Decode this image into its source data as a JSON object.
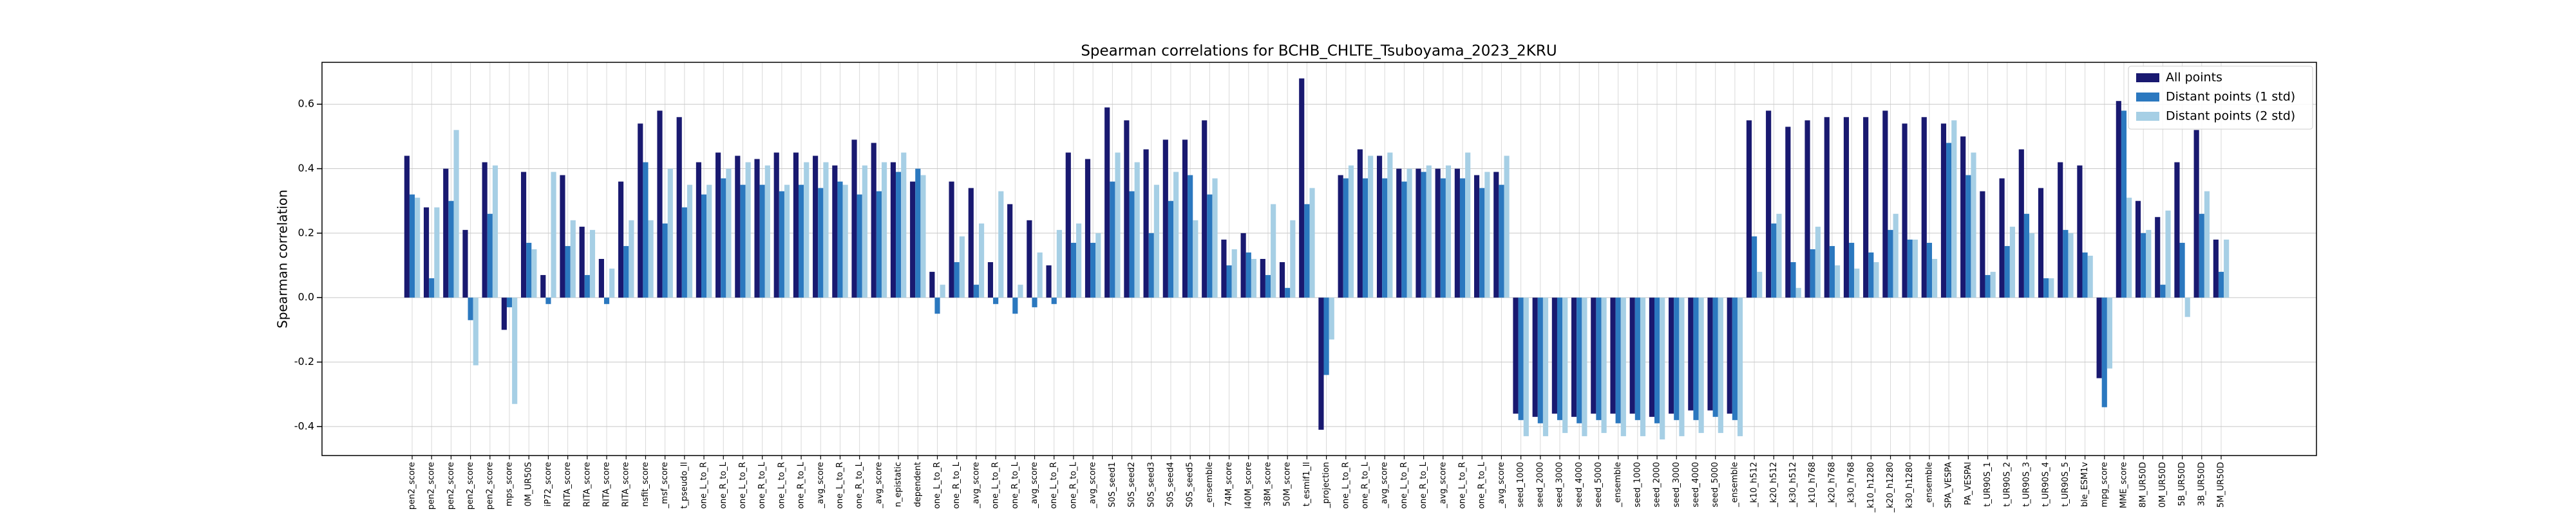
{
  "chart_data": {
    "type": "bar",
    "title": "Spearman correlations for BCHB_CHLTE_Tsuboyama_2023_2KRU",
    "y_label": "Spearman correlation",
    "categories": [
      "pen2_score",
      "pen2_score",
      "pen2_score",
      "pen2_score",
      "pen2_score",
      "mps_score",
      "0M_UR50S",
      "iP72_score",
      "RITA_score",
      "RITA_score",
      "RITA_score",
      "RITA_score",
      "nsfit_score",
      "_msf_score",
      "t_pseudo_ll",
      "one_L_to_R",
      "one_R_to_L",
      "one_L_to_R",
      "one_R_to_L",
      "one_L_to_R",
      "one_R_to_L",
      "_avg_score",
      "one_L_to_R",
      "one_R_to_L",
      "_avg_score",
      "n_epistatic",
      "dependent",
      "one_L_to_R",
      "one_R_to_L",
      "_avg_score",
      "one_L_to_R",
      "one_R_to_L",
      "_avg_score",
      "one_L_to_R",
      "one_R_to_L",
      "_avg_score",
      "S0S_seed1",
      "S0S_seed2",
      "S0S_seed3",
      "S0S_seed4",
      "S0S_seed5",
      "_ensemble",
      "74M_score",
      "l40M_score",
      "38M_score",
      "50M_score",
      "t_esmif1_ll",
      "_projection",
      "one_L_to_R",
      "one_R_to_L",
      "_avg_score",
      "one_L_to_R",
      "one_R_to_L",
      "_avg_score",
      "one_L_to_R",
      "one_R_to_L",
      "_avg_score",
      "seed_1000",
      "seed_2000",
      "seed_3000",
      "seed_4000",
      "seed_5000",
      "_ensemble",
      "seed_1000",
      "seed_2000",
      "seed_3000",
      "seed_4000",
      "seed_5000",
      "_ensemble",
      "_k10_h512",
      "_k20_h512",
      "_k30_h512",
      "_k10_h768",
      "_k20_h768",
      "_k30_h768",
      "_k10_h1280",
      "_k20_h1280",
      "k30_h1280",
      "_ensemble",
      "SPA_VESPA",
      "PA_VESPAl",
      "t_UR90S_1",
      "t_UR90S_2",
      "t_UR90S_3",
      "t_UR90S_4",
      "t_UR90S_5",
      "ble_ESM1v",
      "mpg_score",
      "MME_score",
      "8M_UR50D",
      "0M_UR50D",
      "5B_UR50D",
      "3B_UR50D",
      "5M_UR50D"
    ],
    "series": [
      {
        "name": "All points",
        "color": "#191970",
        "values": [
          0.44,
          0.28,
          0.4,
          0.21,
          0.42,
          -0.1,
          0.39,
          0.07,
          0.38,
          0.22,
          0.12,
          0.36,
          0.54,
          0.58,
          0.56,
          0.42,
          0.45,
          0.44,
          0.43,
          0.45,
          0.45,
          0.44,
          0.41,
          0.49,
          0.48,
          0.42,
          0.36,
          0.08,
          0.36,
          0.34,
          0.11,
          0.29,
          0.24,
          0.1,
          0.45,
          0.43,
          0.59,
          0.55,
          0.46,
          0.49,
          0.49,
          0.55,
          0.18,
          0.2,
          0.12,
          0.11,
          0.68,
          -0.41,
          0.38,
          0.46,
          0.44,
          0.4,
          0.4,
          0.4,
          0.4,
          0.38,
          0.39,
          -0.36,
          -0.37,
          -0.36,
          -0.37,
          -0.36,
          -0.36,
          -0.36,
          -0.37,
          -0.36,
          -0.35,
          -0.35,
          -0.36,
          0.55,
          0.58,
          0.53,
          0.55,
          0.56,
          0.56,
          0.56,
          0.58,
          0.54,
          0.56,
          0.54,
          0.5,
          0.33,
          0.37,
          0.46,
          0.34,
          0.42,
          0.41,
          -0.25,
          0.61,
          0.3,
          0.25,
          0.42,
          0.52,
          0.18
        ]
      },
      {
        "name": "Distant points (1 std)",
        "color": "#2b78bf",
        "values": [
          0.32,
          0.06,
          0.3,
          -0.07,
          0.26,
          -0.03,
          0.17,
          -0.02,
          0.16,
          0.07,
          -0.02,
          0.16,
          0.42,
          0.23,
          0.28,
          0.32,
          0.37,
          0.35,
          0.35,
          0.33,
          0.35,
          0.34,
          0.36,
          0.32,
          0.33,
          0.39,
          0.4,
          -0.05,
          0.11,
          0.04,
          -0.02,
          -0.05,
          -0.03,
          -0.02,
          0.17,
          0.17,
          0.36,
          0.33,
          0.2,
          0.3,
          0.38,
          0.32,
          0.1,
          0.14,
          0.07,
          0.03,
          0.29,
          -0.24,
          0.37,
          0.37,
          0.37,
          0.36,
          0.39,
          0.37,
          0.37,
          0.34,
          0.35,
          -0.38,
          -0.39,
          -0.38,
          -0.39,
          -0.38,
          -0.39,
          -0.38,
          -0.39,
          -0.38,
          -0.38,
          -0.37,
          -0.38,
          0.19,
          0.23,
          0.11,
          0.15,
          0.16,
          0.17,
          0.14,
          0.21,
          0.18,
          0.17,
          0.48,
          0.38,
          0.07,
          0.16,
          0.26,
          0.06,
          0.21,
          0.14,
          -0.34,
          0.58,
          0.2,
          0.04,
          0.17,
          0.26,
          0.08
        ]
      },
      {
        "name": "Distant points (2 std)",
        "color": "#a6cfe5",
        "values": [
          0.31,
          0.28,
          0.52,
          -0.21,
          0.41,
          -0.33,
          0.15,
          0.39,
          0.24,
          0.21,
          0.09,
          0.24,
          0.24,
          0.4,
          0.35,
          0.35,
          0.4,
          0.42,
          0.41,
          0.35,
          0.42,
          0.42,
          0.35,
          0.41,
          0.42,
          0.45,
          0.38,
          0.04,
          0.19,
          0.23,
          0.33,
          0.04,
          0.14,
          0.21,
          0.23,
          0.2,
          0.45,
          0.42,
          0.35,
          0.39,
          0.24,
          0.37,
          0.15,
          0.12,
          0.29,
          0.24,
          0.34,
          -0.13,
          0.41,
          0.44,
          0.45,
          0.4,
          0.41,
          0.41,
          0.45,
          0.39,
          0.44,
          -0.43,
          -0.43,
          -0.42,
          -0.43,
          -0.42,
          -0.43,
          -0.43,
          -0.44,
          -0.43,
          -0.42,
          -0.42,
          -0.43,
          0.08,
          0.26,
          0.03,
          0.22,
          0.1,
          0.09,
          0.11,
          0.26,
          0.18,
          0.12,
          0.55,
          0.45,
          0.08,
          0.22,
          0.2,
          0.06,
          0.2,
          0.13,
          -0.22,
          0.31,
          0.21,
          0.27,
          -0.06,
          0.33,
          0.18
        ]
      }
    ],
    "ylim": [
      -0.49,
      0.73
    ],
    "yticks": [
      -0.4,
      -0.2,
      {
        "value": 0,
        "label": "0.0"
      },
      0.2,
      0.4,
      0.6
    ],
    "grid": true,
    "legend": "upper right"
  }
}
